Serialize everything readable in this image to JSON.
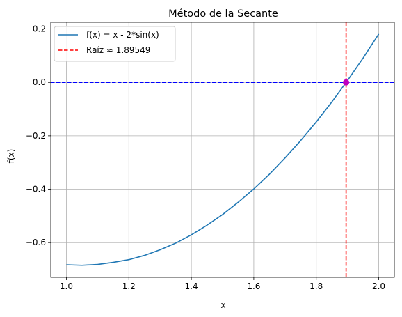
{
  "chart_data": {
    "type": "line",
    "title": "Método de la Secante",
    "xlabel": "x",
    "ylabel": "f(x)",
    "xlim": [
      0.95,
      2.05
    ],
    "ylim": [
      -0.73,
      0.225
    ],
    "x_ticks": [
      1.0,
      1.2,
      1.4,
      1.6,
      1.8,
      2.0
    ],
    "x_tick_labels": [
      "1.0",
      "1.2",
      "1.4",
      "1.6",
      "1.8",
      "2.0"
    ],
    "y_ticks": [
      -0.6,
      -0.4,
      -0.2,
      0.0,
      0.2
    ],
    "y_tick_labels": [
      "−0.6",
      "−0.4",
      "−0.2",
      "0.0",
      "0.2"
    ],
    "grid": true,
    "legend_position": "upper-left",
    "series": [
      {
        "name": "f(x) = x - 2*sin(x)",
        "color": "#1f77b4",
        "style": "solid",
        "x": [
          1.0,
          1.05,
          1.1,
          1.15,
          1.2,
          1.25,
          1.3,
          1.35,
          1.4,
          1.45,
          1.5,
          1.55,
          1.6,
          1.65,
          1.7,
          1.75,
          1.8,
          1.85,
          1.9,
          1.95,
          2.0
        ],
        "y": [
          -0.683,
          -0.685,
          -0.682,
          -0.674,
          -0.664,
          -0.648,
          -0.627,
          -0.602,
          -0.571,
          -0.535,
          -0.495,
          -0.449,
          -0.399,
          -0.344,
          -0.283,
          -0.218,
          -0.148,
          -0.073,
          0.007,
          0.091,
          0.181
        ]
      }
    ],
    "reference_lines": [
      {
        "name": "Raíz ≈ 1.89549",
        "orientation": "vertical",
        "value": 1.89549,
        "color": "#ff0000",
        "style": "dashed",
        "in_legend": true
      },
      {
        "orientation": "horizontal",
        "value": 0.0,
        "color": "#0000ff",
        "style": "dashed",
        "in_legend": false
      }
    ],
    "markers": [
      {
        "x": 1.89549,
        "y": 0.0,
        "color": "#bf00bf"
      }
    ]
  }
}
